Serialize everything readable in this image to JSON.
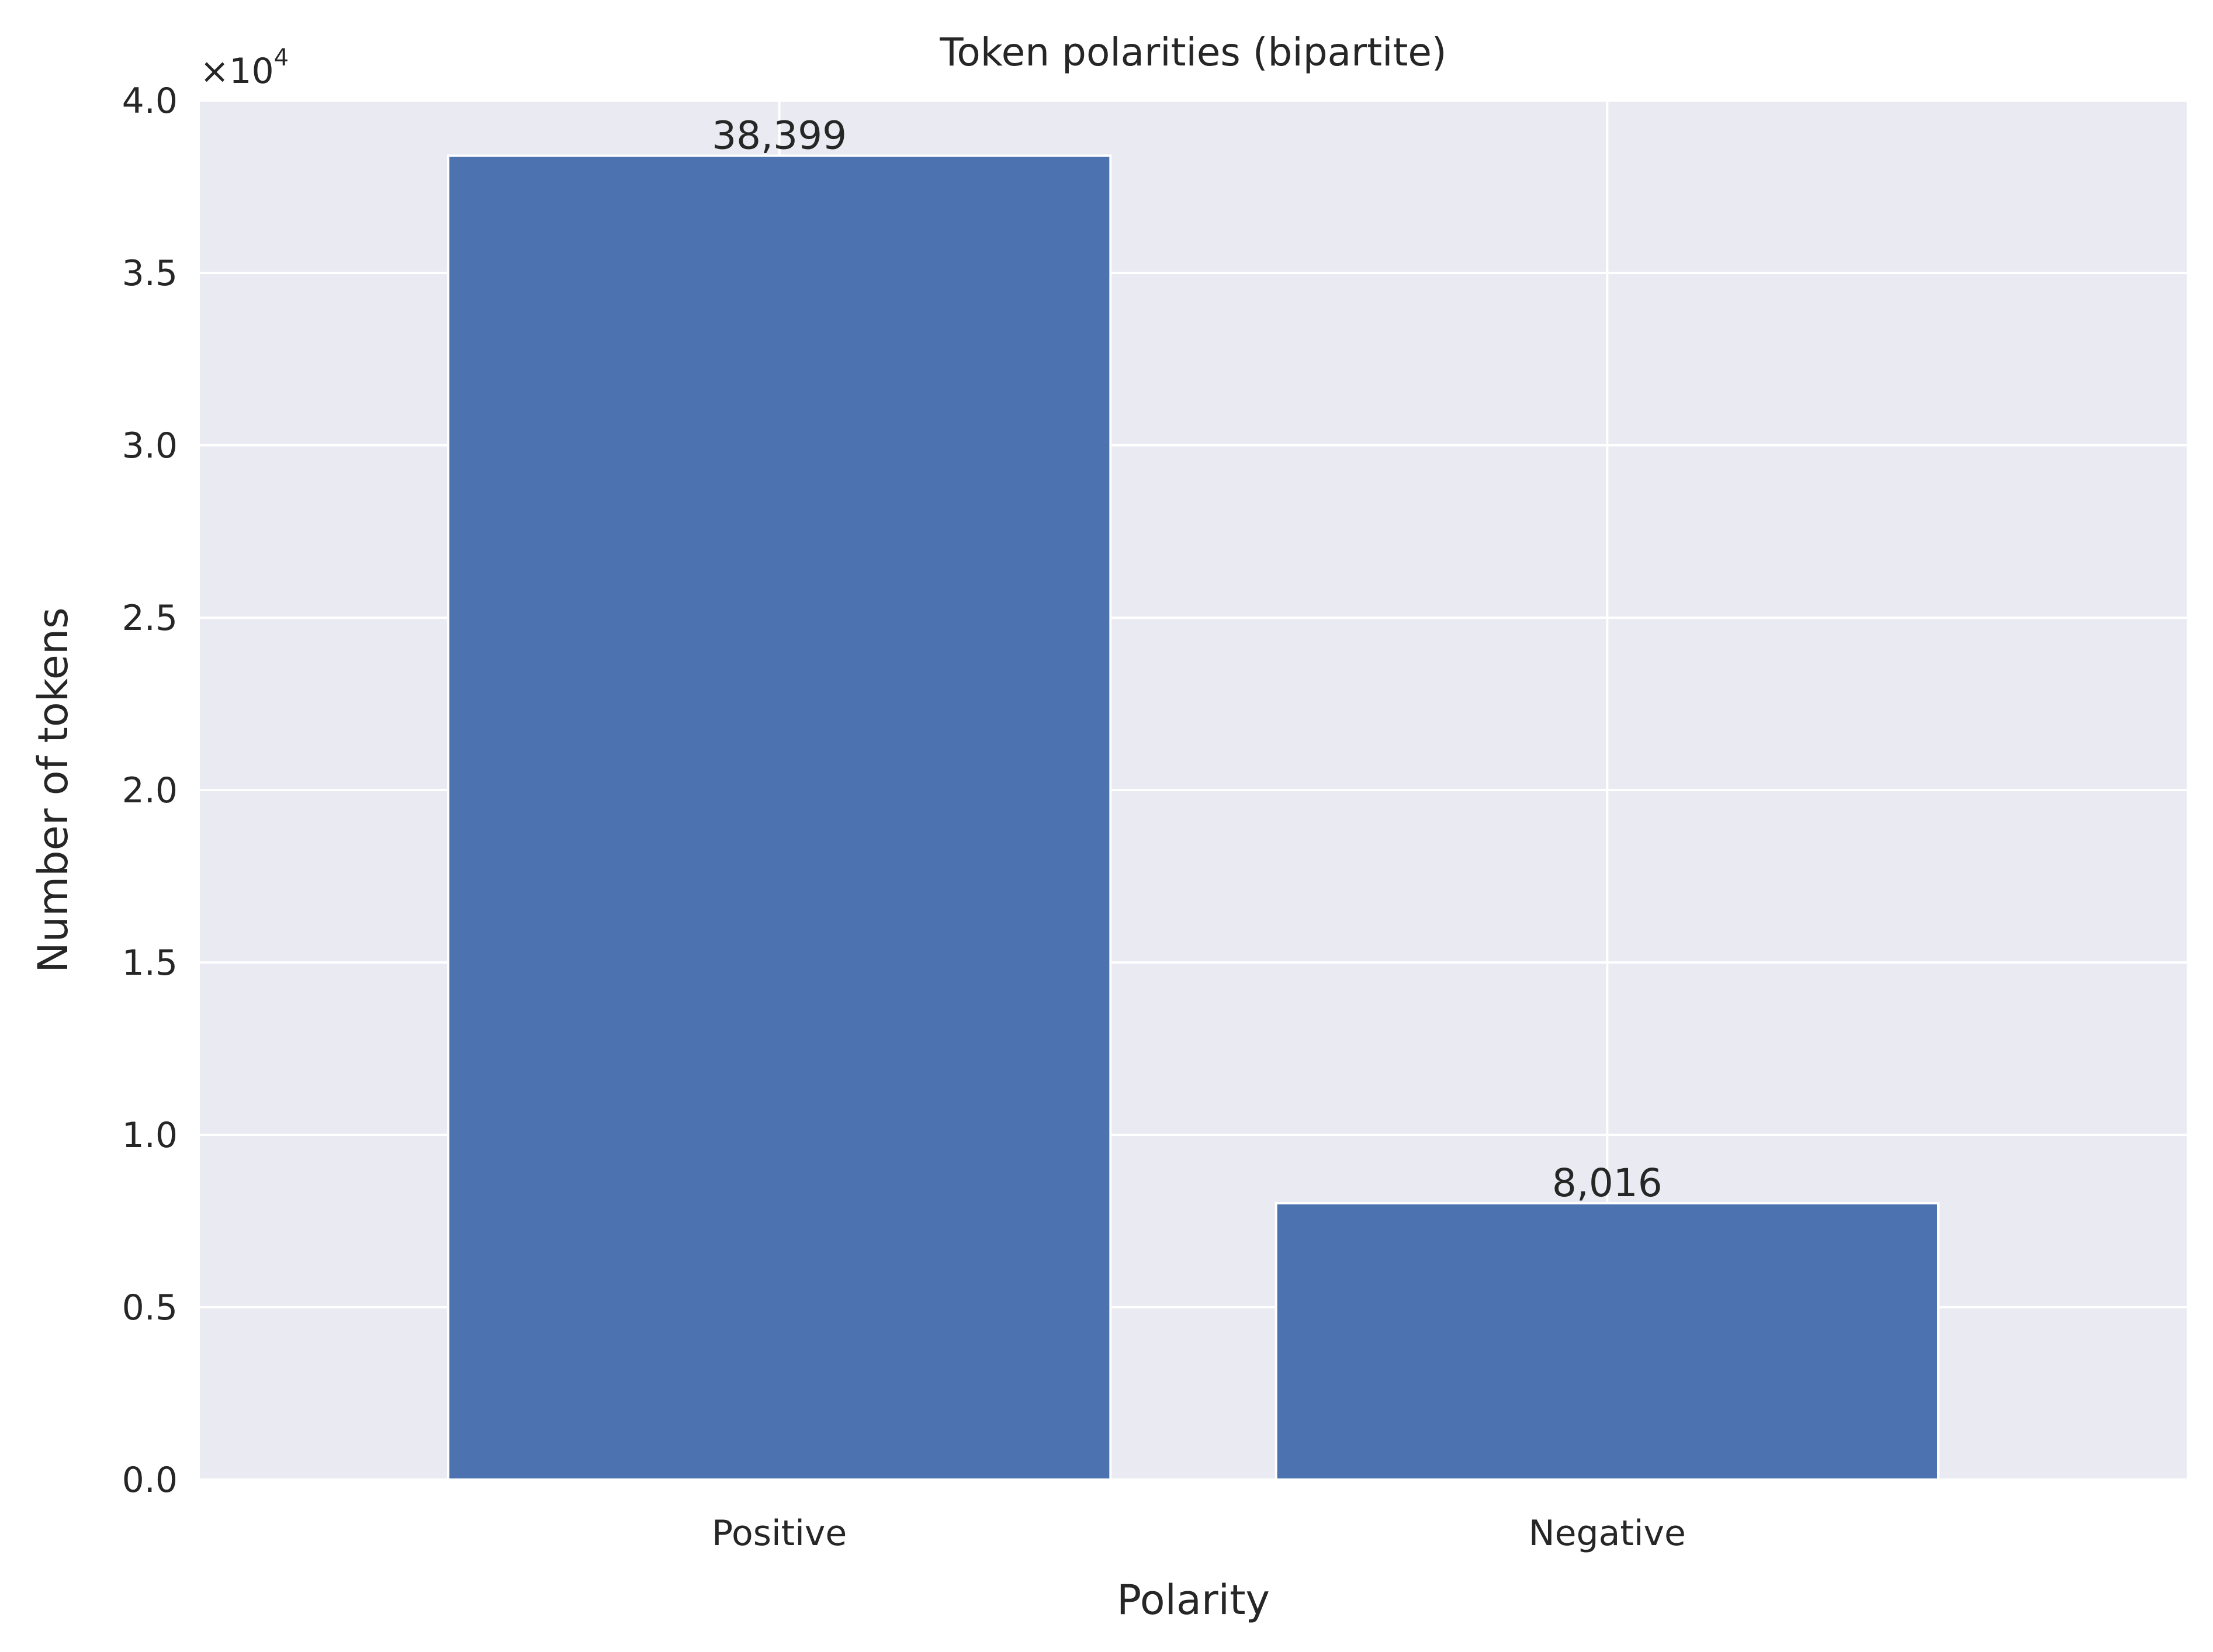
{
  "chart_data": {
    "type": "bar",
    "title": "Token polarities (bipartite)",
    "xlabel": "Polarity",
    "ylabel": "Number of tokens",
    "categories": [
      "Positive",
      "Negative"
    ],
    "values": [
      38399,
      8016
    ],
    "value_labels": [
      "38,399",
      "8,016"
    ],
    "ylim": [
      0,
      40000
    ],
    "yticks": [
      0,
      5000,
      10000,
      15000,
      20000,
      25000,
      30000,
      35000,
      40000
    ],
    "ytick_labels": [
      "0.0",
      "0.5",
      "1.0",
      "1.5",
      "2.0",
      "2.5",
      "3.0",
      "3.5",
      "4.0"
    ],
    "y_offset_label": "×10",
    "y_offset_exponent": "4",
    "grid": true,
    "bar_color": "#4c72b0",
    "background_color": "#eaeaf2",
    "grid_color": "#ffffff"
  }
}
